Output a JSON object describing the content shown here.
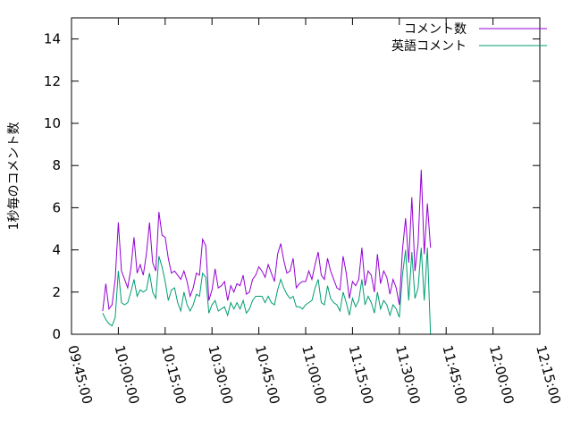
{
  "chart_data": {
    "type": "line",
    "ylabel": "1秒毎のコメント数",
    "ylim": [
      0,
      15
    ],
    "yticks": [
      0,
      2,
      4,
      6,
      8,
      10,
      12,
      14
    ],
    "xlim": [
      "09:45:00",
      "12:15:00"
    ],
    "xticks": [
      "09:45:00",
      "10:00:00",
      "10:15:00",
      "10:30:00",
      "10:45:00",
      "11:00:00",
      "11:15:00",
      "11:30:00",
      "11:45:00",
      "12:00:00",
      "12:15:00"
    ],
    "legend_position": "top-right",
    "grid": false,
    "series": [
      {
        "name": "コメント数",
        "color": "#9400d3",
        "points": [
          [
            "09:55:00",
            1.1
          ],
          [
            "09:56:00",
            2.4
          ],
          [
            "09:57:00",
            1.2
          ],
          [
            "09:58:00",
            1.4
          ],
          [
            "09:59:00",
            2.6
          ],
          [
            "10:00:00",
            5.3
          ],
          [
            "10:01:00",
            3.0
          ],
          [
            "10:02:00",
            2.6
          ],
          [
            "10:03:00",
            2.2
          ],
          [
            "10:04:00",
            3.1
          ],
          [
            "10:05:00",
            4.6
          ],
          [
            "10:06:00",
            2.9
          ],
          [
            "10:07:00",
            3.3
          ],
          [
            "10:08:00",
            2.8
          ],
          [
            "10:09:00",
            3.8
          ],
          [
            "10:10:00",
            5.3
          ],
          [
            "10:11:00",
            3.4
          ],
          [
            "10:12:00",
            3.0
          ],
          [
            "10:13:00",
            5.8
          ],
          [
            "10:14:00",
            4.7
          ],
          [
            "10:15:00",
            4.6
          ],
          [
            "10:16:00",
            3.6
          ],
          [
            "10:17:00",
            2.9
          ],
          [
            "10:18:00",
            3.0
          ],
          [
            "10:19:00",
            2.8
          ],
          [
            "10:20:00",
            2.6
          ],
          [
            "10:21:00",
            3.0
          ],
          [
            "10:22:00",
            2.5
          ],
          [
            "10:23:00",
            1.8
          ],
          [
            "10:24:00",
            2.2
          ],
          [
            "10:25:00",
            2.9
          ],
          [
            "10:26:00",
            2.8
          ],
          [
            "10:27:00",
            4.5
          ],
          [
            "10:28:00",
            4.2
          ],
          [
            "10:29:00",
            1.6
          ],
          [
            "10:30:00",
            2.1
          ],
          [
            "10:31:00",
            3.1
          ],
          [
            "10:32:00",
            2.2
          ],
          [
            "10:33:00",
            2.3
          ],
          [
            "10:34:00",
            2.5
          ],
          [
            "10:35:00",
            1.6
          ],
          [
            "10:36:00",
            2.3
          ],
          [
            "10:37:00",
            2.0
          ],
          [
            "10:38:00",
            2.4
          ],
          [
            "10:39:00",
            2.3
          ],
          [
            "10:40:00",
            2.8
          ],
          [
            "10:41:00",
            1.9
          ],
          [
            "10:42:00",
            2.0
          ],
          [
            "10:43:00",
            2.6
          ],
          [
            "10:44:00",
            2.8
          ],
          [
            "10:45:00",
            3.2
          ],
          [
            "10:46:00",
            3.0
          ],
          [
            "10:47:00",
            2.7
          ],
          [
            "10:48:00",
            3.3
          ],
          [
            "10:49:00",
            2.9
          ],
          [
            "10:50:00",
            2.5
          ],
          [
            "10:51:00",
            3.8
          ],
          [
            "10:52:00",
            4.3
          ],
          [
            "10:53:00",
            3.5
          ],
          [
            "10:54:00",
            2.9
          ],
          [
            "10:55:00",
            3.0
          ],
          [
            "10:56:00",
            3.6
          ],
          [
            "10:57:00",
            2.2
          ],
          [
            "10:58:00",
            2.4
          ],
          [
            "10:59:00",
            2.5
          ],
          [
            "11:00:00",
            2.5
          ],
          [
            "11:01:00",
            3.0
          ],
          [
            "11:02:00",
            2.6
          ],
          [
            "11:03:00",
            3.3
          ],
          [
            "11:04:00",
            3.9
          ],
          [
            "11:05:00",
            2.8
          ],
          [
            "11:06:00",
            2.6
          ],
          [
            "11:07:00",
            3.6
          ],
          [
            "11:08:00",
            3.0
          ],
          [
            "11:09:00",
            2.6
          ],
          [
            "11:10:00",
            2.2
          ],
          [
            "11:11:00",
            2.1
          ],
          [
            "11:12:00",
            3.7
          ],
          [
            "11:13:00",
            2.9
          ],
          [
            "11:14:00",
            1.7
          ],
          [
            "11:15:00",
            2.5
          ],
          [
            "11:16:00",
            2.3
          ],
          [
            "11:17:00",
            2.6
          ],
          [
            "11:18:00",
            4.1
          ],
          [
            "11:19:00",
            2.3
          ],
          [
            "11:20:00",
            3.0
          ],
          [
            "11:21:00",
            2.8
          ],
          [
            "11:22:00",
            2.0
          ],
          [
            "11:23:00",
            3.8
          ],
          [
            "11:24:00",
            2.4
          ],
          [
            "11:25:00",
            3.0
          ],
          [
            "11:26:00",
            2.7
          ],
          [
            "11:27:00",
            1.9
          ],
          [
            "11:28:00",
            2.6
          ],
          [
            "11:29:00",
            2.2
          ],
          [
            "11:30:00",
            1.4
          ],
          [
            "11:31:00",
            4.0
          ],
          [
            "11:32:00",
            5.5
          ],
          [
            "11:33:00",
            3.4
          ],
          [
            "11:34:00",
            6.5
          ],
          [
            "11:35:00",
            3.0
          ],
          [
            "11:36:00",
            4.3
          ],
          [
            "11:37:00",
            7.8
          ],
          [
            "11:38:00",
            3.8
          ],
          [
            "11:39:00",
            6.2
          ],
          [
            "11:40:00",
            4.1
          ]
        ]
      },
      {
        "name": "英語コメント",
        "color": "#009e73",
        "points": [
          [
            "09:55:00",
            1.0
          ],
          [
            "09:56:00",
            0.7
          ],
          [
            "09:57:00",
            0.5
          ],
          [
            "09:58:00",
            0.4
          ],
          [
            "09:59:00",
            0.8
          ],
          [
            "10:00:00",
            3.0
          ],
          [
            "10:01:00",
            1.5
          ],
          [
            "10:02:00",
            1.4
          ],
          [
            "10:03:00",
            1.5
          ],
          [
            "10:04:00",
            2.0
          ],
          [
            "10:05:00",
            2.6
          ],
          [
            "10:06:00",
            1.8
          ],
          [
            "10:07:00",
            2.1
          ],
          [
            "10:08:00",
            2.0
          ],
          [
            "10:09:00",
            2.1
          ],
          [
            "10:10:00",
            2.9
          ],
          [
            "10:11:00",
            2.0
          ],
          [
            "10:12:00",
            1.7
          ],
          [
            "10:13:00",
            3.7
          ],
          [
            "10:14:00",
            3.2
          ],
          [
            "10:15:00",
            2.5
          ],
          [
            "10:16:00",
            1.6
          ],
          [
            "10:17:00",
            2.1
          ],
          [
            "10:18:00",
            2.2
          ],
          [
            "10:19:00",
            1.5
          ],
          [
            "10:20:00",
            1.1
          ],
          [
            "10:21:00",
            2.0
          ],
          [
            "10:22:00",
            1.4
          ],
          [
            "10:23:00",
            1.1
          ],
          [
            "10:24:00",
            1.4
          ],
          [
            "10:25:00",
            1.9
          ],
          [
            "10:26:00",
            1.8
          ],
          [
            "10:27:00",
            2.9
          ],
          [
            "10:28:00",
            2.7
          ],
          [
            "10:29:00",
            1.0
          ],
          [
            "10:30:00",
            1.4
          ],
          [
            "10:31:00",
            1.6
          ],
          [
            "10:32:00",
            1.1
          ],
          [
            "10:33:00",
            1.2
          ],
          [
            "10:34:00",
            1.3
          ],
          [
            "10:35:00",
            0.9
          ],
          [
            "10:36:00",
            1.5
          ],
          [
            "10:37:00",
            1.2
          ],
          [
            "10:38:00",
            1.5
          ],
          [
            "10:39:00",
            1.2
          ],
          [
            "10:40:00",
            1.6
          ],
          [
            "10:41:00",
            1.0
          ],
          [
            "10:42:00",
            1.2
          ],
          [
            "10:43:00",
            1.6
          ],
          [
            "10:44:00",
            1.8
          ],
          [
            "10:45:00",
            1.8
          ],
          [
            "10:46:00",
            1.8
          ],
          [
            "10:47:00",
            1.5
          ],
          [
            "10:48:00",
            1.8
          ],
          [
            "10:49:00",
            1.5
          ],
          [
            "10:50:00",
            1.4
          ],
          [
            "10:51:00",
            2.1
          ],
          [
            "10:52:00",
            2.6
          ],
          [
            "10:53:00",
            2.2
          ],
          [
            "10:54:00",
            1.9
          ],
          [
            "10:55:00",
            1.7
          ],
          [
            "10:56:00",
            1.8
          ],
          [
            "10:57:00",
            1.3
          ],
          [
            "10:58:00",
            1.3
          ],
          [
            "10:59:00",
            1.2
          ],
          [
            "11:00:00",
            1.4
          ],
          [
            "11:01:00",
            1.5
          ],
          [
            "11:02:00",
            1.6
          ],
          [
            "11:03:00",
            2.2
          ],
          [
            "11:04:00",
            2.6
          ],
          [
            "11:05:00",
            1.5
          ],
          [
            "11:06:00",
            1.4
          ],
          [
            "11:07:00",
            2.3
          ],
          [
            "11:08:00",
            1.7
          ],
          [
            "11:09:00",
            1.5
          ],
          [
            "11:10:00",
            1.4
          ],
          [
            "11:11:00",
            1.1
          ],
          [
            "11:12:00",
            2.0
          ],
          [
            "11:13:00",
            1.5
          ],
          [
            "11:14:00",
            0.9
          ],
          [
            "11:15:00",
            1.7
          ],
          [
            "11:16:00",
            1.3
          ],
          [
            "11:17:00",
            1.6
          ],
          [
            "11:18:00",
            2.6
          ],
          [
            "11:19:00",
            1.4
          ],
          [
            "11:20:00",
            1.8
          ],
          [
            "11:21:00",
            1.5
          ],
          [
            "11:22:00",
            1.0
          ],
          [
            "11:23:00",
            2.0
          ],
          [
            "11:24:00",
            1.2
          ],
          [
            "11:25:00",
            1.6
          ],
          [
            "11:26:00",
            1.4
          ],
          [
            "11:27:00",
            0.9
          ],
          [
            "11:28:00",
            1.4
          ],
          [
            "11:29:00",
            1.2
          ],
          [
            "11:30:00",
            0.8
          ],
          [
            "11:31:00",
            2.8
          ],
          [
            "11:32:00",
            4.0
          ],
          [
            "11:33:00",
            1.6
          ],
          [
            "11:34:00",
            3.9
          ],
          [
            "11:35:00",
            1.7
          ],
          [
            "11:36:00",
            2.2
          ],
          [
            "11:37:00",
            4.1
          ],
          [
            "11:38:00",
            1.6
          ],
          [
            "11:39:00",
            4.1
          ],
          [
            "11:40:00",
            0.0
          ]
        ]
      }
    ]
  }
}
